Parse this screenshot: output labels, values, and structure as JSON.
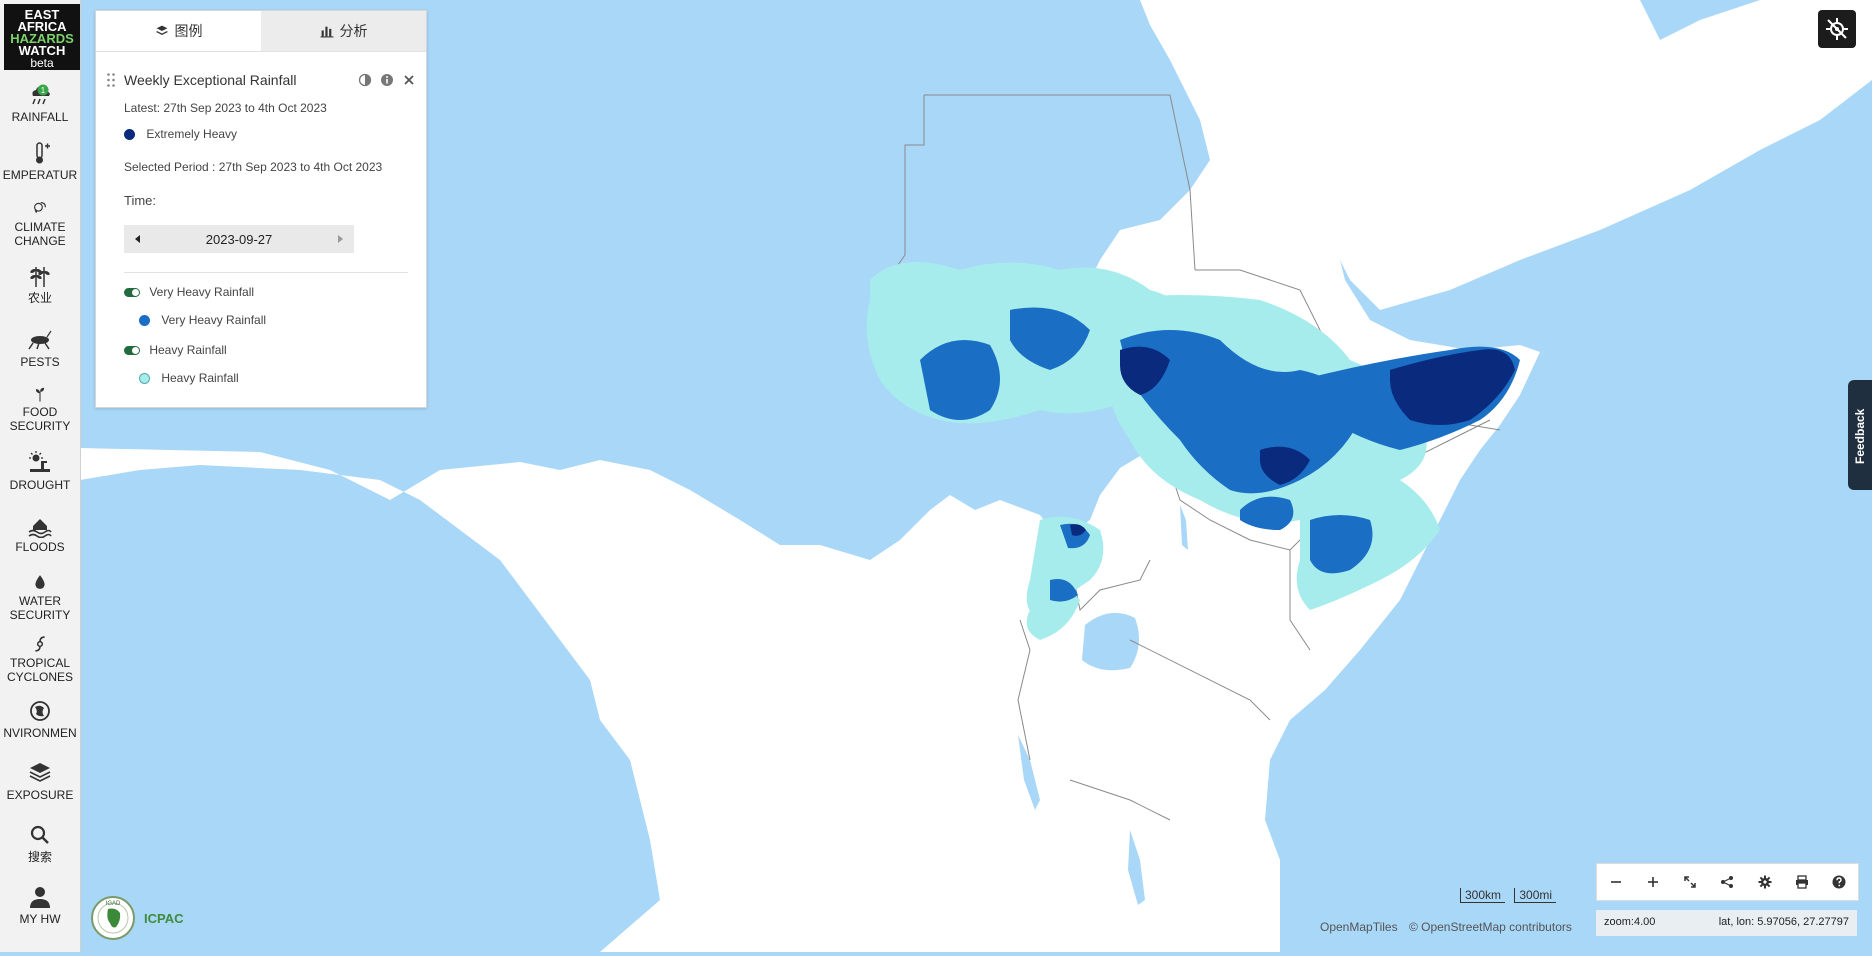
{
  "app": {
    "logo_lines": [
      "EAST",
      "AFRICA",
      "HAZARDS",
      "WATCH"
    ],
    "logo_badge": "beta"
  },
  "sidebar": {
    "items": [
      {
        "label": "RAINFALL",
        "icon": "rain-cloud-icon",
        "badge": "1"
      },
      {
        "label": "EMPERATUR",
        "icon": "thermometer-icon"
      },
      {
        "label": "CLIMATE\nCHANGE",
        "icon": "climate-change-icon"
      },
      {
        "label": "农业",
        "icon": "wheat-icon"
      },
      {
        "label": "PESTS",
        "icon": "locust-icon"
      },
      {
        "label": "FOOD\nSECURITY",
        "icon": "sprout-icon"
      },
      {
        "label": "DROUGHT",
        "icon": "drought-icon"
      },
      {
        "label": "FLOODS",
        "icon": "flood-icon"
      },
      {
        "label": "WATER\nSECURITY",
        "icon": "water-drop-icon"
      },
      {
        "label": "TROPICAL\nCYCLONES",
        "icon": "cyclone-icon"
      },
      {
        "label": "NVIRONMEN",
        "icon": "environment-icon"
      },
      {
        "label": "EXPOSURE",
        "icon": "layers-icon"
      },
      {
        "label": "搜索",
        "icon": "search-icon"
      },
      {
        "label": "MY HW",
        "icon": "user-icon"
      }
    ]
  },
  "panel": {
    "tabs": [
      {
        "label": "图例",
        "icon": "layers-icon",
        "active": true
      },
      {
        "label": "分析",
        "icon": "bar-chart-icon",
        "active": false
      }
    ],
    "layer_title": "Weekly Exceptional Rainfall",
    "latest": "Latest: 27th Sep 2023 to 4th Oct 2023",
    "legend_main": {
      "label": "Extremely Heavy",
      "color": "#0a2a7e"
    },
    "selected_period": "Selected Period : 27th Sep 2023 to 4th Oct 2023",
    "time_label": "Time:",
    "time_value": "2023-09-27",
    "sublayers": [
      {
        "toggle_label": "Very Heavy Rainfall",
        "legend_label": "Very Heavy Rainfall",
        "color": "#1a6fc4",
        "enabled": true
      },
      {
        "toggle_label": "Heavy Rainfall",
        "legend_label": "Heavy Rainfall",
        "color": "#a7ecec",
        "enabled": true
      }
    ]
  },
  "map": {
    "scale_km": "300km",
    "scale_mi": "300mi",
    "attribution_tiles": "OpenMapTiles",
    "attribution_osm": "© OpenStreetMap contributors",
    "zoom_text": "zoom:4.00",
    "coords_text": "lat, lon: 5.97056, 27.27797",
    "colors": {
      "water": "#a9d7f7",
      "land": "#ffffff",
      "border": "#8a8a8a",
      "extreme": "#0a2a7e",
      "very_heavy": "#1a6fc4",
      "heavy": "#a7ecec"
    }
  },
  "feedback_label": "Feedback",
  "footer_logo": {
    "text": "ICPAC",
    "seal_text": "IGAD"
  }
}
